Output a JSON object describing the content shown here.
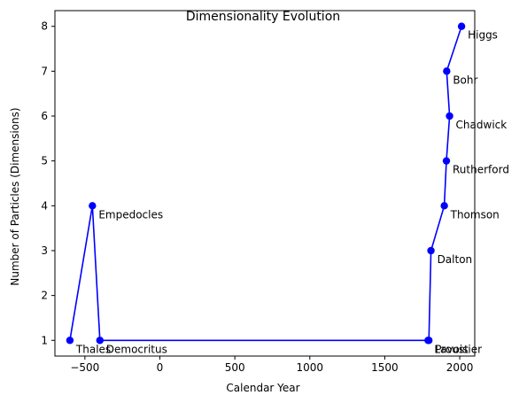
{
  "chart_data": {
    "type": "line",
    "title": "Dimensionality Evolution",
    "xlabel": "Calendar Year",
    "ylabel": "Number of Particles (Dimensions)",
    "xlim": [
      -700,
      2100
    ],
    "ylim": [
      0.65,
      8.35
    ],
    "xticks": [
      -500,
      0,
      500,
      1000,
      1500,
      2000
    ],
    "yticks": [
      1,
      2,
      3,
      4,
      5,
      6,
      7,
      8
    ],
    "grid": false,
    "line_color": "#0000ff",
    "marker_color": "#0000ff",
    "points": [
      {
        "label": "Thales",
        "x": -600,
        "y": 1
      },
      {
        "label": "Empedocles",
        "x": -450,
        "y": 4
      },
      {
        "label": "Democritus",
        "x": -400,
        "y": 1
      },
      {
        "label": "Lavoisier",
        "x": 1789,
        "y": 1
      },
      {
        "label": "Proust",
        "x": 1794,
        "y": 1
      },
      {
        "label": "Dalton",
        "x": 1808,
        "y": 3
      },
      {
        "label": "Thomson",
        "x": 1897,
        "y": 4
      },
      {
        "label": "Rutherford",
        "x": 1911,
        "y": 5
      },
      {
        "label": "Chadwick",
        "x": 1932,
        "y": 6
      },
      {
        "label": "Bohr",
        "x": 1913,
        "y": 7
      },
      {
        "label": "Higgs",
        "x": 2012,
        "y": 8
      }
    ]
  }
}
